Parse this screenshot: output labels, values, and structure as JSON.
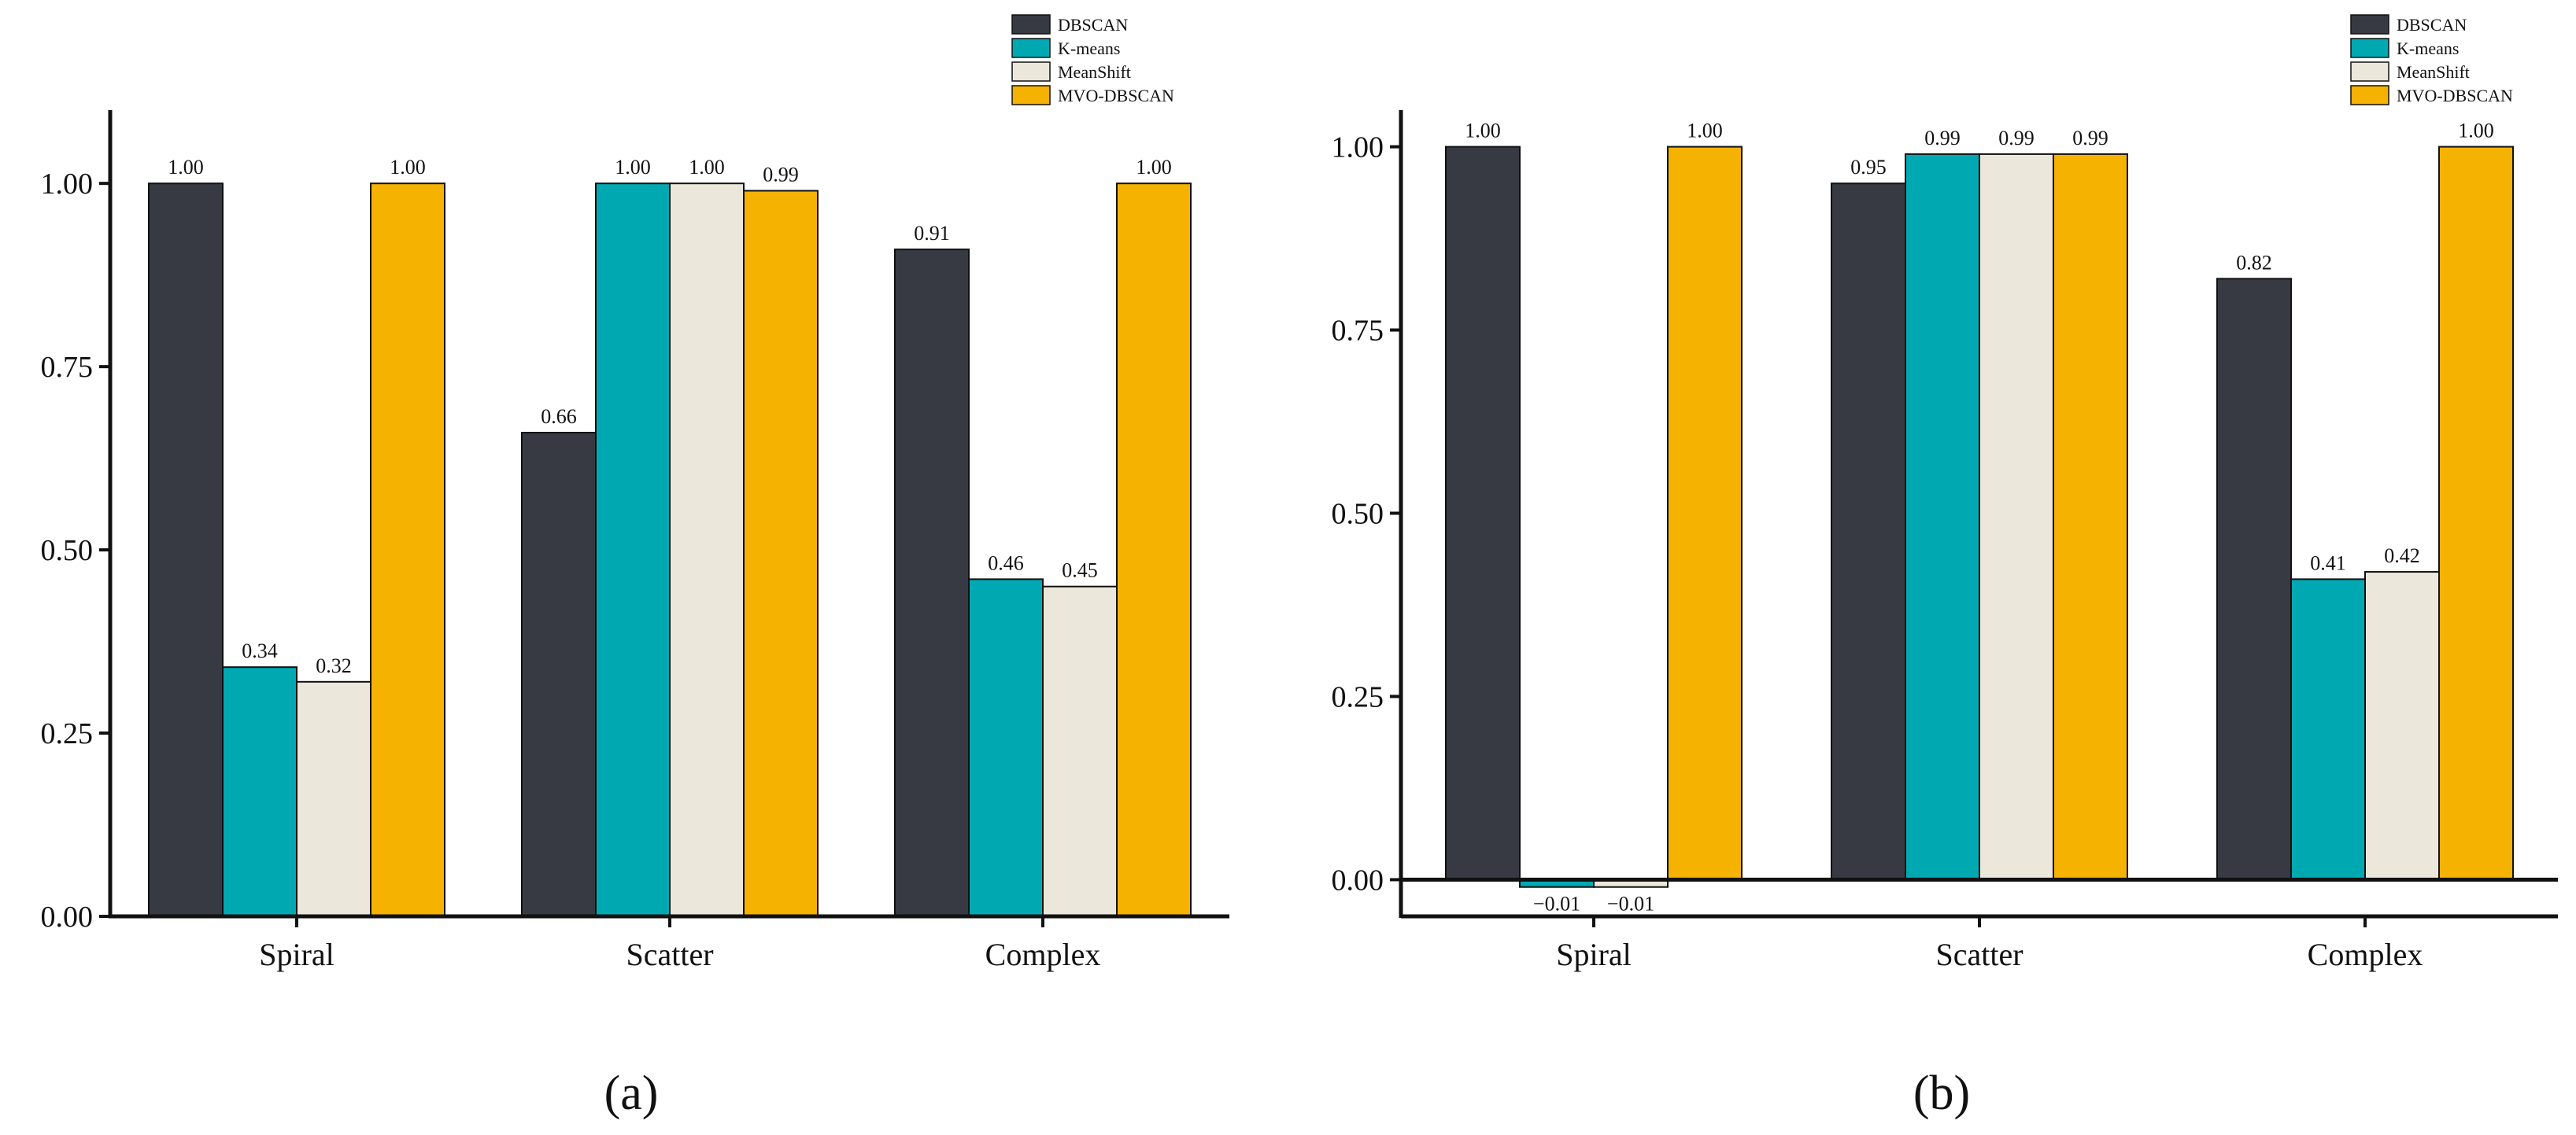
{
  "colors": {
    "DBSCAN": "#373a42",
    "K-means": "#00a9b2",
    "MeanShift": "#ebe7da",
    "MVO-DBSCAN": "#f6b200"
  },
  "chart_data": [
    {
      "type": "bar",
      "panel_label": "(a)",
      "categories": [
        "Spiral",
        "Scatter",
        "Complex"
      ],
      "series": [
        {
          "name": "DBSCAN",
          "values": [
            1.0,
            0.66,
            0.91
          ],
          "labels": [
            "1.00",
            "0.66",
            "0.91"
          ]
        },
        {
          "name": "K-means",
          "values": [
            0.34,
            1.0,
            0.46
          ],
          "labels": [
            "0.34",
            "1.00",
            "0.46"
          ]
        },
        {
          "name": "MeanShift",
          "values": [
            0.32,
            1.0,
            0.45
          ],
          "labels": [
            "0.32",
            "1.00",
            "0.45"
          ]
        },
        {
          "name": "MVO-DBSCAN",
          "values": [
            1.0,
            0.99,
            1.0
          ],
          "labels": [
            "1.00",
            "0.99",
            "1.00"
          ]
        }
      ],
      "yticks": [
        "0.00",
        "0.25",
        "0.50",
        "0.75",
        "1.00"
      ],
      "ytick_values": [
        0,
        0.25,
        0.5,
        0.75,
        1.0
      ],
      "ylim": [
        0,
        1.1
      ],
      "legend": "top-right"
    },
    {
      "type": "bar",
      "panel_label": "(b)",
      "categories": [
        "Spiral",
        "Scatter",
        "Complex"
      ],
      "series": [
        {
          "name": "DBSCAN",
          "values": [
            1.0,
            0.95,
            0.82
          ],
          "labels": [
            "1.00",
            "0.95",
            "0.82"
          ]
        },
        {
          "name": "K-means",
          "values": [
            -0.01,
            0.99,
            0.41
          ],
          "labels": [
            "−0.01",
            "0.99",
            "0.41"
          ]
        },
        {
          "name": "MeanShift",
          "values": [
            -0.01,
            0.99,
            0.42
          ],
          "labels": [
            "−0.01",
            "0.99",
            "0.42"
          ]
        },
        {
          "name": "MVO-DBSCAN",
          "values": [
            1.0,
            0.99,
            1.0
          ],
          "labels": [
            "1.00",
            "0.99",
            "1.00"
          ]
        }
      ],
      "yticks": [
        "0.00",
        "0.25",
        "0.50",
        "0.75",
        "1.00"
      ],
      "ytick_values": [
        0,
        0.25,
        0.5,
        0.75,
        1.0
      ],
      "ylim": [
        -0.05,
        1.05
      ],
      "legend": "top-right"
    }
  ]
}
